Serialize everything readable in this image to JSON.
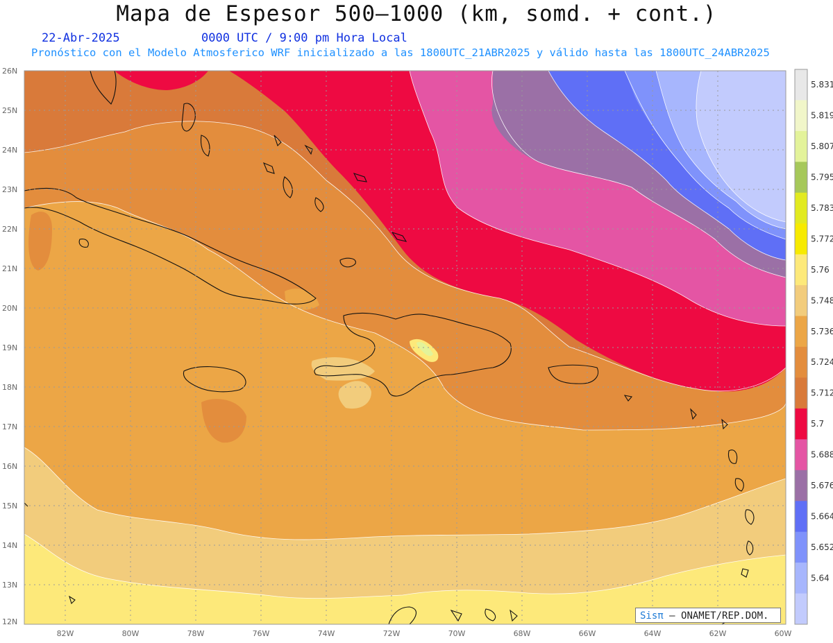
{
  "header": {
    "title": "Mapa de Espesor 500—1000 (km, somd. + cont.)",
    "date": "22-Abr-2025",
    "time": "0000 UTC / 9:00 pm Hora Local",
    "forecast": "Pronóstico con el Modelo Atmosferico WRF inicializado a las 1800UTC_21ABR2025 y válido hasta las  1800UTC_24ABR2025"
  },
  "map": {
    "lat_labels": [
      "26N",
      "25N",
      "24N",
      "23N",
      "22N",
      "21N",
      "20N",
      "19N",
      "18N",
      "17N",
      "16N",
      "15N",
      "14N",
      "13N",
      "12N"
    ],
    "lon_labels": [
      "82W",
      "80W",
      "78W",
      "76W",
      "74W",
      "72W",
      "70W",
      "68W",
      "66W",
      "64W",
      "62W",
      "60W"
    ]
  },
  "colorbar": {
    "levels": [
      "5.831",
      "5.819",
      "5.807",
      "5.795",
      "5.783",
      "5.772",
      "5.76",
      "5.748",
      "5.736",
      "5.724",
      "5.712",
      "5.7",
      "5.688",
      "5.676",
      "5.664",
      "5.652",
      "5.64"
    ],
    "colors": [
      "#e8e8e8",
      "#f1f6c9",
      "#e3f39a",
      "#a6c85a",
      "#e2ea20",
      "#f7ea00",
      "#fde97a",
      "#f2cc7c",
      "#eca646",
      "#e38d3d",
      "#d97a3a",
      "#ee0a42",
      "#e455a4",
      "#9b70a6",
      "#5f6ff6",
      "#7f92fb",
      "#a7b6fd",
      "#c2cbfd"
    ]
  },
  "credit": {
    "logo": "Sisπ",
    "text": "— ONAMET/REP.DOM."
  }
}
